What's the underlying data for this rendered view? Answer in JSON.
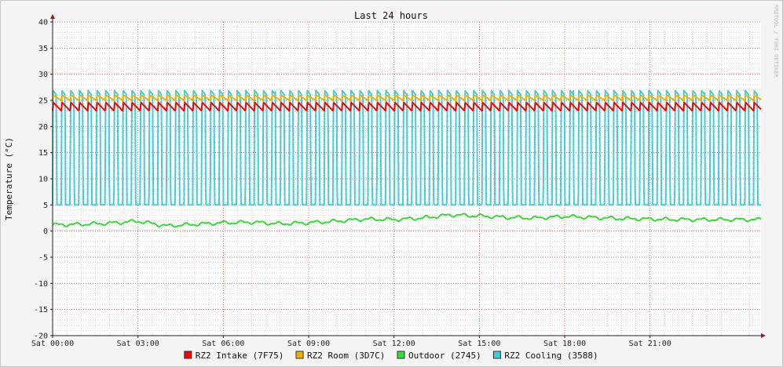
{
  "chart_data": {
    "type": "line",
    "title": "Last 24 hours",
    "ylabel": "Temperature (°C)",
    "xlabel": "",
    "watermark": "RRDTOOL / TOBI OETIKER",
    "ylim": [
      -20,
      40
    ],
    "yticks": [
      -20,
      -15,
      -10,
      -5,
      0,
      5,
      10,
      15,
      20,
      25,
      30,
      35,
      40
    ],
    "x_range_hours": [
      0,
      24.9
    ],
    "xticks": [
      {
        "hour": 0,
        "label": "Sat 00:00"
      },
      {
        "hour": 3,
        "label": "Sat 03:00"
      },
      {
        "hour": 6,
        "label": "Sat 06:00"
      },
      {
        "hour": 9,
        "label": "Sat 09:00"
      },
      {
        "hour": 12,
        "label": "Sat 12:00"
      },
      {
        "hour": 15,
        "label": "Sat 15:00"
      },
      {
        "hour": 18,
        "label": "Sat 18:00"
      },
      {
        "hour": 21,
        "label": "Sat 21:00"
      }
    ],
    "grid": true,
    "legend_position": "bottom",
    "series": [
      {
        "name": "RZ2 Intake (7F75)",
        "color": "#ff0000",
        "pattern": "sawtooth",
        "cycle_hours": 0.308,
        "low": 23.0,
        "high": 24.6,
        "phase_hours": 0.0
      },
      {
        "name": "RZ2 Room (3D7C)",
        "color": "#e8b400",
        "pattern": "sawtooth",
        "cycle_hours": 0.308,
        "low": 25.0,
        "high": 26.0,
        "phase_hours": 0.0
      },
      {
        "name": "Outdoor (2745)",
        "color": "#33dd33",
        "pattern": "smooth",
        "x": [
          0,
          1,
          2,
          3,
          4,
          5,
          6,
          7,
          8,
          9,
          10,
          11,
          12,
          13,
          14,
          15,
          16,
          17,
          18,
          19,
          20,
          21,
          22,
          23,
          24,
          24.9
        ],
        "values": [
          1.2,
          1.3,
          1.5,
          1.9,
          1.0,
          1.3,
          1.6,
          1.7,
          1.4,
          1.6,
          1.9,
          2.3,
          2.2,
          2.5,
          3.1,
          2.9,
          2.6,
          2.5,
          2.8,
          2.6,
          2.4,
          2.3,
          2.2,
          2.2,
          2.2,
          2.2
        ]
      },
      {
        "name": "RZ2 Cooling (3588)",
        "color": "#44ccdd",
        "pattern": "square",
        "cycle_hours": 0.308,
        "low": 5.0,
        "high": 27.0,
        "duty": 0.42,
        "phase_hours": 0.0
      }
    ]
  }
}
